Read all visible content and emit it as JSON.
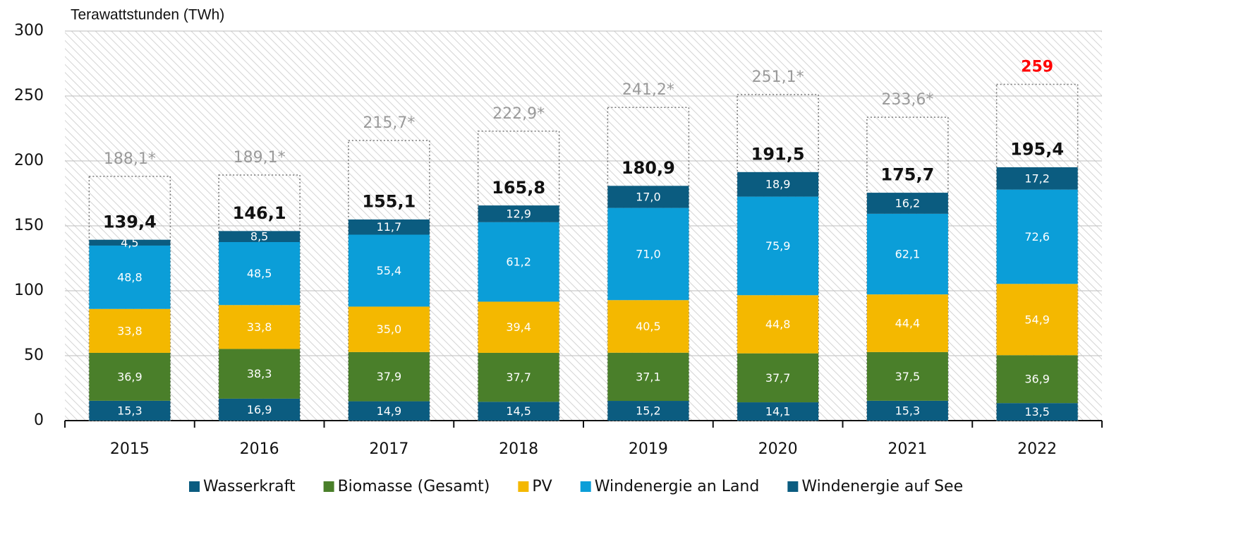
{
  "chart_data": {
    "type": "stacked_bar",
    "y_axis_label": "Terawattstunden (TWh)",
    "categories": [
      "2015",
      "2016",
      "2017",
      "2018",
      "2019",
      "2020",
      "2021",
      "2022"
    ],
    "series": [
      {
        "name": "Wasserkraft",
        "color": "#0b5c80",
        "values": [
          15.3,
          16.9,
          14.9,
          14.5,
          15.2,
          14.1,
          15.3,
          13.5
        ],
        "value_labels": [
          "15,3",
          "16,9",
          "14,9",
          "14,5",
          "15,2",
          "14,1",
          "15,3",
          "13,5"
        ]
      },
      {
        "name": "Biomasse (Gesamt)",
        "color": "#4a7f2a",
        "values": [
          36.9,
          38.3,
          37.9,
          37.7,
          37.1,
          37.7,
          37.5,
          36.9
        ],
        "value_labels": [
          "36,9",
          "38,3",
          "37,9",
          "37,7",
          "37,1",
          "37,7",
          "37,5",
          "36,9"
        ]
      },
      {
        "name": "PV",
        "color": "#f4b800",
        "values": [
          33.8,
          33.8,
          35.0,
          39.4,
          40.5,
          44.8,
          44.4,
          54.9
        ],
        "value_labels": [
          "33,8",
          "33,8",
          "35,0",
          "39,4",
          "40,5",
          "44,8",
          "44,4",
          "54,9"
        ]
      },
      {
        "name": "Windenergie an Land",
        "color": "#0b9ed8",
        "values": [
          48.8,
          48.5,
          55.4,
          61.2,
          71.0,
          75.9,
          62.1,
          72.6
        ],
        "value_labels": [
          "48,8",
          "48,5",
          "55,4",
          "61,2",
          "71,0",
          "75,9",
          "62,1",
          "72,6"
        ]
      },
      {
        "name": "Windenergie auf See",
        "color": "#0b5c80",
        "values": [
          4.5,
          8.5,
          11.7,
          12.9,
          17.0,
          18.9,
          16.2,
          17.2
        ],
        "value_labels": [
          "4,5",
          "8,5",
          "11,7",
          "12,9",
          "17,0",
          "18,9",
          "16,2",
          "17,2"
        ]
      }
    ],
    "totals": [
      139.4,
      146.1,
      155.1,
      165.8,
      180.9,
      191.5,
      175.7,
      195.4
    ],
    "totals_labels": [
      "139,4",
      "146,1",
      "155,1",
      "165,8",
      "180,9",
      "191,5",
      "175,7",
      "195,4"
    ],
    "targets": [
      188.1,
      189.1,
      215.7,
      222.9,
      241.2,
      251.1,
      233.6,
      259
    ],
    "targets_labels": [
      "188,1*",
      "189,1*",
      "215,7*",
      "222,9*",
      "241,2*",
      "251,1*",
      "233,6*",
      "259"
    ],
    "targets_label_colors": [
      "#9a9a9a",
      "#9a9a9a",
      "#9a9a9a",
      "#9a9a9a",
      "#9a9a9a",
      "#9a9a9a",
      "#9a9a9a",
      "#ff0000"
    ],
    "ylim": [
      0,
      300
    ],
    "yticks": [
      0,
      50,
      100,
      150,
      200,
      250,
      300
    ],
    "grid": true,
    "legend": "bottom"
  }
}
